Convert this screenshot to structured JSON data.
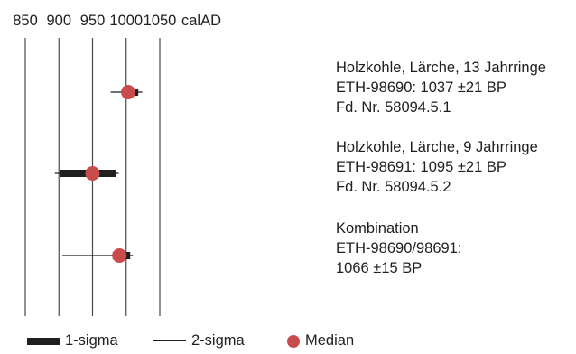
{
  "chart_data": {
    "type": "interval",
    "axis": {
      "ticks": [
        850,
        900,
        950,
        1000,
        1050
      ],
      "unit_label": "calAD",
      "xlim": [
        850,
        1050
      ],
      "grid": true
    },
    "series": [
      {
        "lines": [
          "Holzkohle, Lärche, 13 Jahrringe",
          "ETH-98690: 1037 ±21 BP",
          "Fd. Nr. 58094.5.1"
        ],
        "one_sigma": [
          996,
          1018
        ],
        "two_sigma": [
          977,
          1024
        ],
        "median": 1003
      },
      {
        "lines": [
          "Holzkohle, Lärche, 9 Jahrringe",
          "ETH-98691: 1095 ±21 BP",
          "Fd. Nr. 58094.5.2"
        ],
        "one_sigma": [
          902,
          985
        ],
        "two_sigma": [
          894,
          989
        ],
        "median": 950
      },
      {
        "lines": [
          "Kombination",
          "ETH-98690/98691:",
          "1066 ±15 BP"
        ],
        "one_sigma": [
          980,
          1006
        ],
        "two_sigma": [
          905,
          1010
        ],
        "median": 990
      }
    ],
    "legend": [
      {
        "label": "1-sigma",
        "kind": "thick-bar"
      },
      {
        "label": "2-sigma",
        "kind": "thin-line"
      },
      {
        "label": "Median",
        "kind": "dot"
      }
    ],
    "colors": {
      "bar": "#1f1f1f",
      "grid": "#4a4a4a",
      "median": "#c94b4b"
    }
  }
}
